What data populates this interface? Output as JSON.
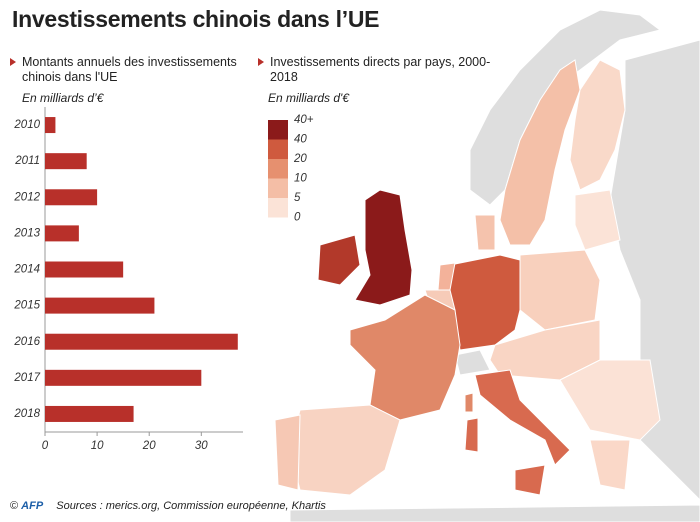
{
  "header": {
    "title": "Investissements chinois dans l’UE"
  },
  "chart_data": {
    "type": "bar",
    "orientation": "horizontal",
    "subtitle": "Montants annuels des investissements chinois dans l'UE",
    "unit": "En milliards d’€",
    "categories": [
      "2010",
      "2011",
      "2012",
      "2013",
      "2014",
      "2015",
      "2016",
      "2017",
      "2018"
    ],
    "values": [
      2,
      8,
      10,
      6.5,
      15,
      21,
      37,
      30,
      17
    ],
    "color": "#b8302a",
    "xlim": [
      0,
      38
    ],
    "xticks": [
      0,
      10,
      20,
      30
    ],
    "grid": false
  },
  "map": {
    "subtitle": "Investissements directs par pays, 2000-2018",
    "unit": "En milliards d'€",
    "breaks": [
      "40+",
      "40",
      "20",
      "10",
      "5",
      "0"
    ],
    "colors": [
      "#8b1a1a",
      "#cf5a3e",
      "#e6906f",
      "#f4bea6",
      "#fbe3d7"
    ]
  },
  "footer": {
    "copyright": "©",
    "logo": "AFP",
    "sources": "Sources : merics.org, Commission européenne, Khartis"
  }
}
